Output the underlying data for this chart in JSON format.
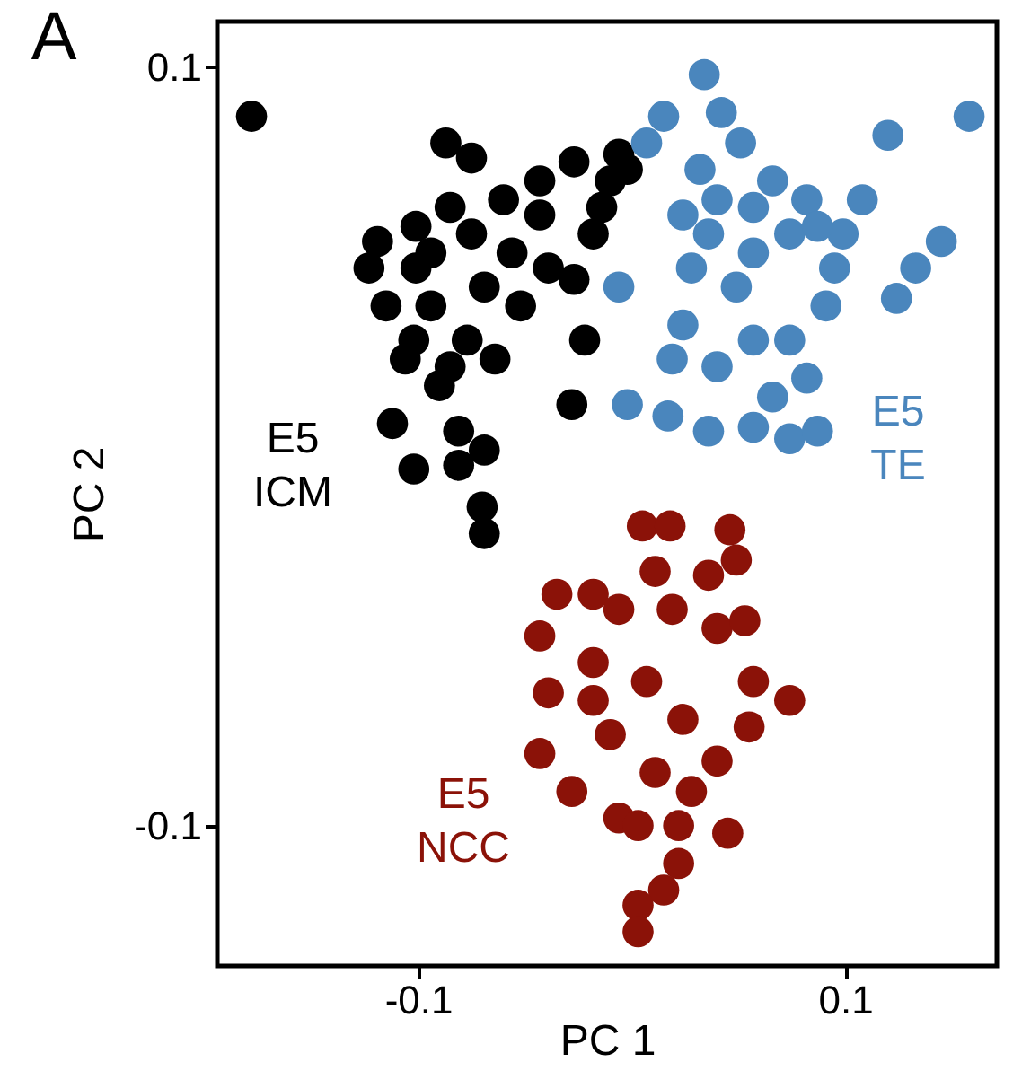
{
  "chart_data": {
    "type": "scatter",
    "xlabel": "PC 1",
    "ylabel": "PC 2",
    "xlim": [
      -0.194,
      0.171
    ],
    "ylim": [
      -0.137,
      0.112
    ],
    "xticks": [
      {
        "value": -0.1,
        "label": "-0.1"
      },
      {
        "value": 0.1,
        "label": "0.1"
      }
    ],
    "yticks": [
      {
        "value": -0.1,
        "label": "-0.1"
      },
      {
        "value": 0.1,
        "label": "0.1"
      }
    ],
    "grid": false,
    "marker": "circle",
    "annotations": [
      "A",
      "E5\nICM",
      "E5\nTE",
      "E5\nNCC"
    ],
    "series": [
      {
        "color": "#000000",
        "x": [
          -0.178,
          -0.087,
          -0.075,
          -0.101,
          -0.101,
          -0.094,
          -0.106,
          -0.112,
          -0.102,
          -0.07,
          -0.069,
          -0.081,
          -0.09,
          -0.077,
          -0.069,
          -0.056,
          -0.043,
          -0.043,
          -0.027,
          -0.006,
          -0.01,
          -0.018,
          -0.027,
          -0.022,
          -0.028,
          -0.052,
          -0.06,
          -0.085,
          -0.119,
          -0.123,
          -0.115,
          -0.094,
          -0.075,
          -0.064,
          -0.085,
          -0.102,
          -0.002,
          -0.014,
          -0.039,
          -0.069,
          -0.081
        ],
        "values": [
          0.087,
          0.08,
          0.076,
          0.058,
          0.047,
          0.037,
          0.023,
          0.006,
          -0.006,
          -0.016,
          -0.023,
          0.004,
          0.016,
          0.028,
          0.042,
          0.051,
          0.061,
          0.07,
          0.075,
          0.077,
          0.07,
          0.056,
          0.044,
          0.028,
          0.011,
          0.037,
          0.065,
          0.063,
          0.054,
          0.047,
          0.037,
          0.051,
          0.056,
          0.023,
          0.021,
          0.028,
          0.073,
          0.063,
          0.047,
          -0.001,
          -0.005
        ]
      },
      {
        "color": "#4a86bd",
        "x": [
          0.034,
          0.042,
          0.051,
          0.015,
          0.007,
          0.032,
          0.04,
          0.024,
          0.028,
          0.024,
          0.019,
          -0.002,
          0.017,
          0.036,
          0.057,
          0.074,
          0.087,
          0.066,
          0.082,
          0.074,
          0.091,
          0.095,
          0.099,
          0.108,
          0.12,
          0.158,
          0.133,
          0.124,
          0.145,
          0.057,
          0.074,
          0.082,
          0.066,
          0.049,
          0.057,
          0.04,
          -0.006,
          0.036,
          0.087,
          0.057
        ],
        "values": [
          0.098,
          0.088,
          0.08,
          0.087,
          0.08,
          0.073,
          0.065,
          0.061,
          0.047,
          0.032,
          0.023,
          0.011,
          0.008,
          0.004,
          0.005,
          0.002,
          0.004,
          0.013,
          0.018,
          0.028,
          0.037,
          0.047,
          0.056,
          0.065,
          0.082,
          0.087,
          0.047,
          0.039,
          0.054,
          0.051,
          0.056,
          0.065,
          0.07,
          0.042,
          0.028,
          0.021,
          0.042,
          0.056,
          0.058,
          0.063
        ]
      },
      {
        "color": "#8b1208",
        "x": [
          0.005,
          0.018,
          0.046,
          0.049,
          0.011,
          -0.035,
          -0.018,
          -0.043,
          -0.039,
          -0.043,
          -0.028,
          -0.006,
          0.003,
          0.022,
          0.045,
          0.055,
          0.074,
          0.057,
          0.04,
          0.053,
          0.036,
          0.019,
          -0.006,
          -0.018,
          0.007,
          0.024,
          -0.01,
          0.011,
          0.028,
          0.022,
          0.015,
          0.003,
          0.003,
          -0.018,
          0.04
        ],
        "values": [
          -0.021,
          -0.021,
          -0.022,
          -0.03,
          -0.033,
          -0.039,
          -0.039,
          -0.05,
          -0.065,
          -0.081,
          -0.091,
          -0.098,
          -0.1,
          -0.1,
          -0.102,
          -0.074,
          -0.067,
          -0.062,
          -0.048,
          -0.046,
          -0.034,
          -0.043,
          -0.043,
          -0.057,
          -0.062,
          -0.072,
          -0.076,
          -0.086,
          -0.091,
          -0.11,
          -0.117,
          -0.121,
          -0.128,
          -0.067,
          -0.083
        ]
      }
    ]
  }
}
